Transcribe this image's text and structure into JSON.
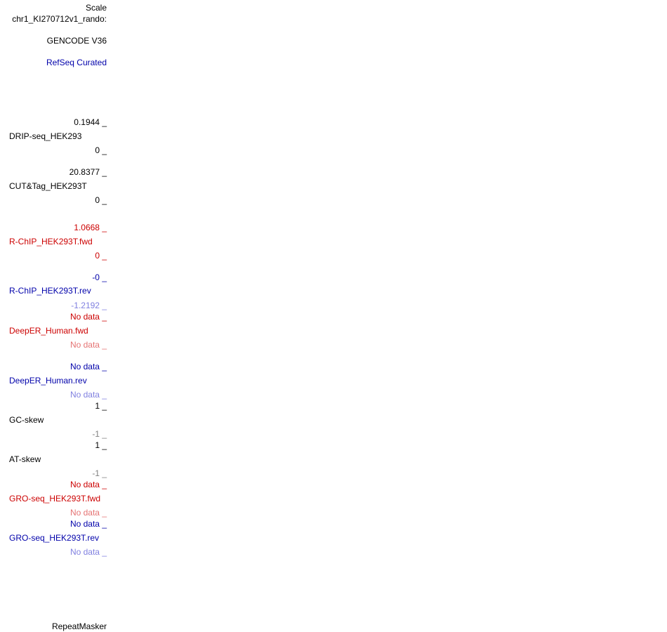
{
  "colors": {
    "default": "#000000",
    "fwd_red": "#cc0000",
    "rev_blue": "#0000aa",
    "light_red": "#e57373",
    "light_blue": "#8080e0"
  },
  "header": {
    "scale": "Scale",
    "chrom": "chr1_KI270712v1_rando:"
  },
  "tracks": {
    "gencode": {
      "label": "GENCODE V36"
    },
    "refseq": {
      "label": "RefSeq Curated"
    },
    "drip": {
      "max": "0.1944 _",
      "name": "DRIP-seq_HEK293",
      "min": "0 _"
    },
    "cuttag": {
      "max": "20.8377 _",
      "name": "CUT&Tag_HEK293T",
      "min": "0 _"
    },
    "rchip_fwd": {
      "max": "1.0668 _",
      "name": "R-ChIP_HEK293T.fwd",
      "min": "0 _"
    },
    "rchip_rev": {
      "max": "-0 _",
      "name": "R-ChIP_HEK293T.rev",
      "min": "-1.2192 _"
    },
    "deeper_fwd": {
      "max": "No data _",
      "name": "DeepER_Human.fwd",
      "min": "No data _"
    },
    "deeper_rev": {
      "max": "No data _",
      "name": "DeepER_Human.rev",
      "min": "No data _"
    },
    "gc_skew": {
      "max": "1 _",
      "name": "GC-skew",
      "min": "-1 _"
    },
    "at_skew": {
      "max": "1 _",
      "name": "AT-skew",
      "min": "-1 _"
    },
    "gro_fwd": {
      "max": "No data _",
      "name": "GRO-seq_HEK293T.fwd",
      "min": "No data _"
    },
    "gro_rev": {
      "max": "No data _",
      "name": "GRO-seq_HEK293T.rev",
      "min": "No data _"
    },
    "repeatmasker": {
      "label": "RepeatMasker"
    }
  }
}
